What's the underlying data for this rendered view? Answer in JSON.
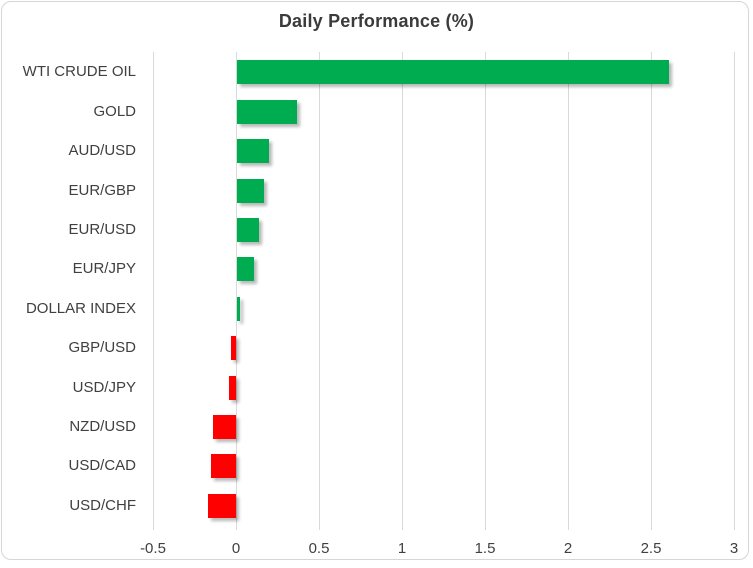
{
  "chart_data": {
    "type": "bar",
    "orientation": "horizontal",
    "title": "Daily Performance (%)",
    "categories": [
      "WTI CRUDE OIL",
      "GOLD",
      "AUD/USD",
      "EUR/GBP",
      "EUR/USD",
      "EUR/JPY",
      "DOLLAR INDEX",
      "GBP/USD",
      "USD/JPY",
      "NZD/USD",
      "USD/CAD",
      "USD/CHF"
    ],
    "values": [
      2.6,
      0.36,
      0.19,
      0.16,
      0.13,
      0.1,
      0.02,
      -0.03,
      -0.04,
      -0.14,
      -0.15,
      -0.17
    ],
    "xlabel": "",
    "ylabel": "",
    "xlim": [
      -0.5,
      3
    ],
    "xticks": [
      -0.5,
      0,
      0.5,
      1,
      1.5,
      2,
      2.5,
      3
    ],
    "xtick_labels": [
      "-0.5",
      "0",
      "0.5",
      "1",
      "1.5",
      "2",
      "2.5",
      "3"
    ],
    "grid": true,
    "legend": false,
    "bar_color_rule": "green for positive values, red for negative values",
    "colors": {
      "positive": "#00AC50",
      "negative": "#FF0000",
      "gridline": "#D9D9D9",
      "title_text": "#3B3B3B",
      "axis_text": "#404040",
      "background": "#FFFFFF",
      "border": "#D6D6D6"
    }
  }
}
